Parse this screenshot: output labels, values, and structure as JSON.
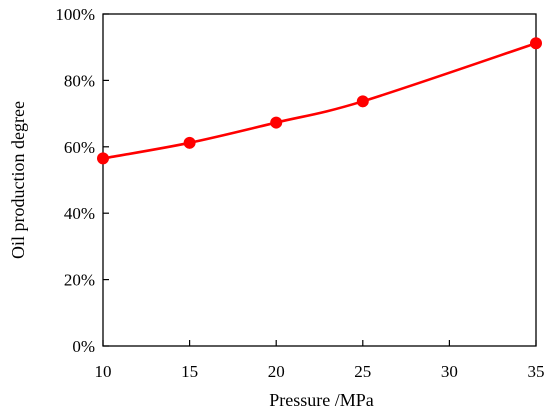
{
  "chart_data": {
    "type": "line",
    "title": "",
    "xlabel": "Pressure /MPa",
    "ylabel": "Oil production degree",
    "x": [
      10,
      15,
      20,
      25,
      35
    ],
    "series": [
      {
        "values": [
          0.565,
          0.612,
          0.673,
          0.737,
          0.912
        ],
        "color": "#ff0000"
      }
    ],
    "xlim": [
      10,
      35
    ],
    "ylim": [
      0,
      1
    ],
    "xticks": [
      10,
      15,
      20,
      25,
      30,
      35
    ],
    "xtick_labels": [
      "10",
      "15",
      "20",
      "25",
      "30",
      "35"
    ],
    "yticks": [
      0,
      0.2,
      0.4,
      0.6,
      0.8,
      1.0
    ],
    "ytick_labels": [
      "0%",
      "20%",
      "40%",
      "60%",
      "80%",
      "100%"
    ],
    "grid": false,
    "legend": "none",
    "marker": "circle",
    "smooth": true
  }
}
